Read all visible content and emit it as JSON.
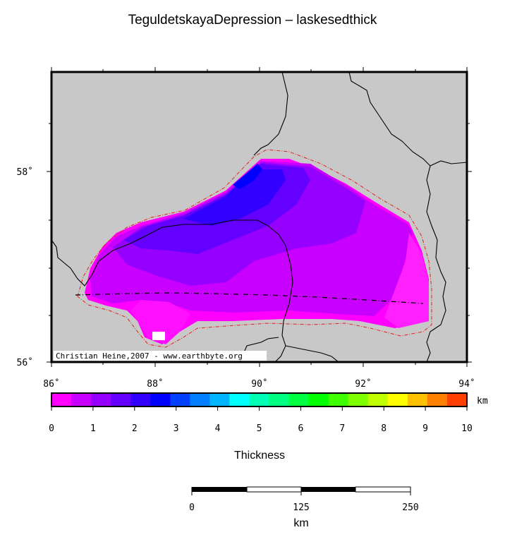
{
  "title": "TeguldetskayaDepression – laskesedthick",
  "map": {
    "lon_ticks": [
      "86˚",
      "88˚",
      "90˚",
      "92˚",
      "94˚"
    ],
    "lat_ticks": [
      "58˚",
      "56˚"
    ],
    "credit": "Christian Heine,2007 - www.earthbyte.org",
    "colors": {
      "background": "#c8c8c8",
      "outline": "#e02020",
      "borders": "#000000"
    }
  },
  "colorbar": {
    "unit": "km",
    "ticks": [
      "0",
      "1",
      "2",
      "3",
      "4",
      "5",
      "6",
      "7",
      "8",
      "9",
      "10"
    ],
    "colors": [
      "#ff00ff",
      "#c800ff",
      "#9600ff",
      "#6400ff",
      "#3200ff",
      "#0000ff",
      "#0040ff",
      "#0080ff",
      "#00b4ff",
      "#00ffff",
      "#00ffb4",
      "#00ff80",
      "#00ff40",
      "#00ff00",
      "#40ff00",
      "#80ff00",
      "#c0ff00",
      "#ffff00",
      "#ffc000",
      "#ff8000",
      "#ff4000"
    ],
    "label": "Thickness"
  },
  "scalebar": {
    "ticks": [
      "0",
      "125",
      "250"
    ],
    "unit": "km"
  }
}
